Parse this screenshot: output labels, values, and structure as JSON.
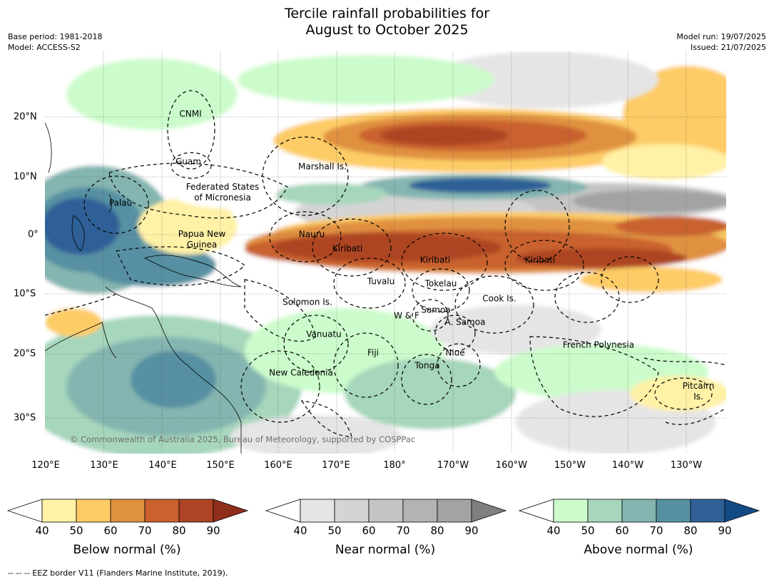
{
  "title": {
    "line1": "Tercile rainfall probabilities for",
    "line2": "August to October 2025"
  },
  "meta": {
    "base_period": "Base period: 1981-2018",
    "model": "Model: ACCESS-S2",
    "model_run": "Model run: 19/07/2025",
    "issued": "Issued: 21/07/2025"
  },
  "map": {
    "lon_labels": [
      "120°E",
      "130°E",
      "140°E",
      "150°E",
      "160°E",
      "170°E",
      "180°",
      "170°W",
      "160°W",
      "150°W",
      "140°W",
      "130°W"
    ],
    "lat_labels": [
      "20°N",
      "10°N",
      "0°",
      "10°S",
      "20°S",
      "30°S"
    ],
    "regions": [
      {
        "label": "CNMI"
      },
      {
        "label": "Guam"
      },
      {
        "label": "Marshall Is."
      },
      {
        "label": "Federated States\nof Micronesia"
      },
      {
        "label": "Palau"
      },
      {
        "label": "Papua New\nGuinea"
      },
      {
        "label": "Nauru"
      },
      {
        "label": "Kiribati"
      },
      {
        "label": "Kiribati"
      },
      {
        "label": "Kiribati"
      },
      {
        "label": "Tuvalu"
      },
      {
        "label": "Tokelau"
      },
      {
        "label": "Cook Is."
      },
      {
        "label": "Solomon Is."
      },
      {
        "label": "Samoa"
      },
      {
        "label": "W & F"
      },
      {
        "label": "A. Samoa"
      },
      {
        "label": "Vanuatu"
      },
      {
        "label": "Fiji"
      },
      {
        "label": "Niue"
      },
      {
        "label": "French Polynesia"
      },
      {
        "label": "Tonga"
      },
      {
        "label": "New Caledonia"
      },
      {
        "label": "Pitcairn\nIs."
      }
    ],
    "copyright": "© Commonwealth of Australia 2025, Bureau of Meteorology, supported by COSPPac"
  },
  "colorbars": [
    {
      "title": "Below normal (%)",
      "ticks": [
        "40",
        "50",
        "60",
        "70",
        "80",
        "90"
      ],
      "colors": [
        "#fff1a6",
        "#fdcc66",
        "#e0913f",
        "#c9622f",
        "#ad4424"
      ],
      "extend_color": "#8e2e1b"
    },
    {
      "title": "Near normal (%)",
      "ticks": [
        "40",
        "50",
        "60",
        "70",
        "80",
        "90"
      ],
      "colors": [
        "#e5e5e5",
        "#d4d4d4",
        "#c4c4c4",
        "#b3b3b3",
        "#a3a3a3"
      ],
      "extend_color": "#7f7f7f"
    },
    {
      "title": "Above normal (%)",
      "ticks": [
        "40",
        "50",
        "60",
        "70",
        "80",
        "90"
      ],
      "colors": [
        "#ccfccb",
        "#a6d6bc",
        "#84b5b0",
        "#5690a2",
        "#2f6197"
      ],
      "extend_color": "#134b87"
    }
  ],
  "footnote": "--  --  -- EEZ border V11 (Flanders Marine Institute, 2019)."
}
